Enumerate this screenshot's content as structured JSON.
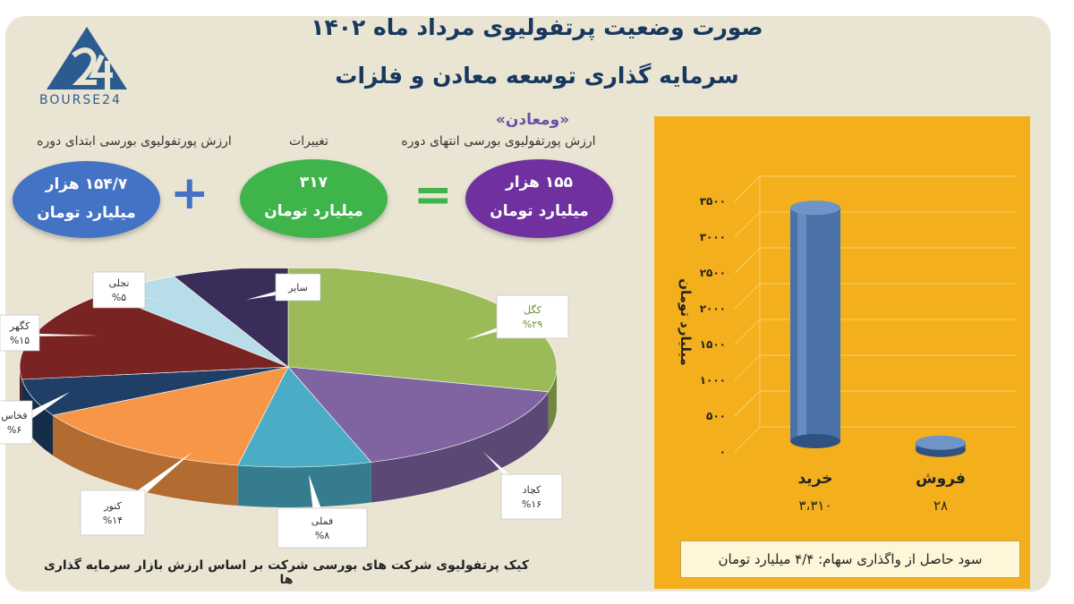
{
  "header": {
    "title_line1": "صورت وضعیت پرتفولیوی مرداد ماه ۱۴۰۲",
    "title_line2": "سرمایه گذاری توسعه معادن و فلزات",
    "logo_text": "BOURSE24",
    "subtitle": "«ومعادن»"
  },
  "summary": {
    "end_label": "ارزش پورتفولیوی بورسی انتهای دوره",
    "change_label": "تغییرات",
    "start_label": "ارزش پورتفولیوی بورسی ابتدای دوره",
    "end_value": "۱۵۵ هزار",
    "end_unit": "میلیارد تومان",
    "change_value": "۳۱۷",
    "change_unit": "میلیارد تومان",
    "start_value": "۱۵۴/۷ هزار",
    "start_unit": "میلیارد تومان",
    "plus": "+",
    "equals": "="
  },
  "colors": {
    "end_oval": "#7030a0",
    "change_oval": "#3fb44a",
    "start_oval": "#4472c4",
    "bar_bg": "#f3b01c",
    "bar": "#4a72a8"
  },
  "pie_caption": "کیک پرتفولیوی شرکت های بورسی شرکت بر اساس  ارزش بازار سرمایه گذاری ها",
  "bar_footer": "سود حاصل از واگذاری سهام: ۴/۴ میلیارد تومان",
  "chart_data": [
    {
      "type": "pie",
      "title": "",
      "slices": [
        {
          "name": "کگل",
          "label": "%۲۹",
          "value": 29,
          "color": "#9bbb59"
        },
        {
          "name": "کچاد",
          "label": "%۱۶",
          "value": 16,
          "color": "#8064a2"
        },
        {
          "name": "فملی",
          "label": "%۸",
          "value": 8,
          "color": "#4bacc6"
        },
        {
          "name": "کنور",
          "label": "%۱۴",
          "value": 14,
          "color": "#f79646"
        },
        {
          "name": "فخاس",
          "label": "%۶",
          "value": 6,
          "color": "#1f3f66"
        },
        {
          "name": "کگهر",
          "label": "%۱۵",
          "value": 15,
          "color": "#7a2323"
        },
        {
          "name": "تجلی",
          "label": "%۵",
          "value": 5,
          "color": "#b7dde8"
        },
        {
          "name": "سایر",
          "label": "",
          "value": 7,
          "color": "#3b2d59"
        }
      ]
    },
    {
      "type": "bar",
      "categories": [
        "خرید",
        "فروش"
      ],
      "values": [
        3310,
        28
      ],
      "value_labels": [
        "۳،۳۱۰",
        "۲۸"
      ],
      "ylabel": "میلیارد تومان",
      "ylim": [
        0,
        3500
      ],
      "yticks": [
        "۰",
        "۵۰۰",
        "۱۰۰۰",
        "۱۵۰۰",
        "۲۰۰۰",
        "۲۵۰۰",
        "۳۰۰۰",
        "۳۵۰۰"
      ],
      "ytick_values": [
        0,
        500,
        1000,
        1500,
        2000,
        2500,
        3000,
        3500
      ],
      "grid": true
    }
  ]
}
